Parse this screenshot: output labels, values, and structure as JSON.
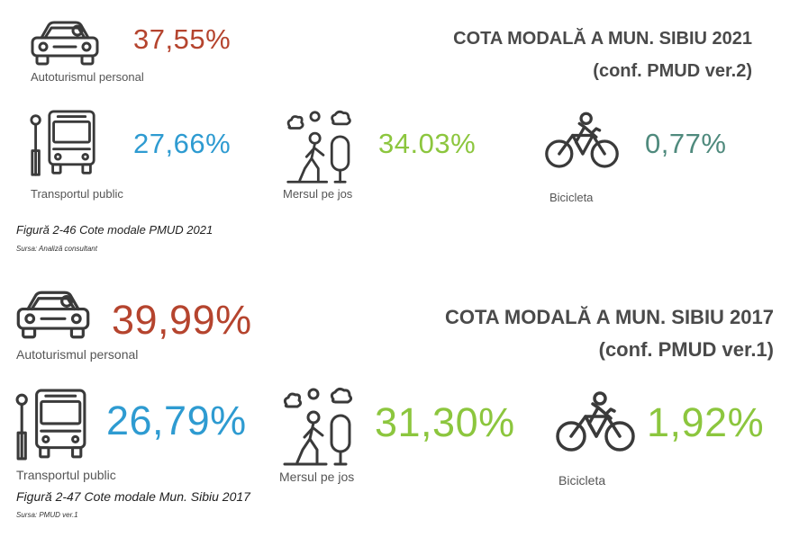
{
  "colors": {
    "car": "#b5442e",
    "public": "#2e9bd1",
    "walk": "#8cc63e",
    "bike": "#4f8a7d",
    "icon": "#3a3a3a"
  },
  "section_2021": {
    "title": "COTA MODALĂ A MUN. SIBIU 2021",
    "subtitle": "(conf. PMUD ver.2)",
    "car": {
      "value": "37,55%",
      "label": "Autoturismul personal",
      "icon": "car-icon"
    },
    "public": {
      "value": "27,66%",
      "label": "Transportul public",
      "icon": "bus-icon"
    },
    "walk": {
      "value": "34.03%",
      "label": "Mersul pe jos",
      "icon": "walking-person-icon"
    },
    "bike": {
      "value": "0,77%",
      "label": "Bicicleta",
      "icon": "cyclist-icon"
    },
    "caption": "Figură 2-46 Cote modale PMUD 2021",
    "source": "Sursa: Analiză consultant"
  },
  "section_2017": {
    "title": "COTA MODALĂ A MUN. SIBIU 2017",
    "subtitle": "(conf. PMUD ver.1)",
    "car": {
      "value": "39,99%",
      "label": "Autoturismul personal",
      "icon": "car-icon"
    },
    "public": {
      "value": "26,79%",
      "label": "Transportul public",
      "icon": "bus-icon"
    },
    "walk": {
      "value": "31,30%",
      "label": "Mersul pe jos",
      "icon": "walking-person-icon"
    },
    "bike": {
      "value": "1,92%",
      "label": "Bicicleta",
      "icon": "cyclist-icon"
    },
    "caption": "Figură 2-47 Cote modale Mun. Sibiu 2017",
    "source": "Sursa: PMUD ver.1"
  }
}
